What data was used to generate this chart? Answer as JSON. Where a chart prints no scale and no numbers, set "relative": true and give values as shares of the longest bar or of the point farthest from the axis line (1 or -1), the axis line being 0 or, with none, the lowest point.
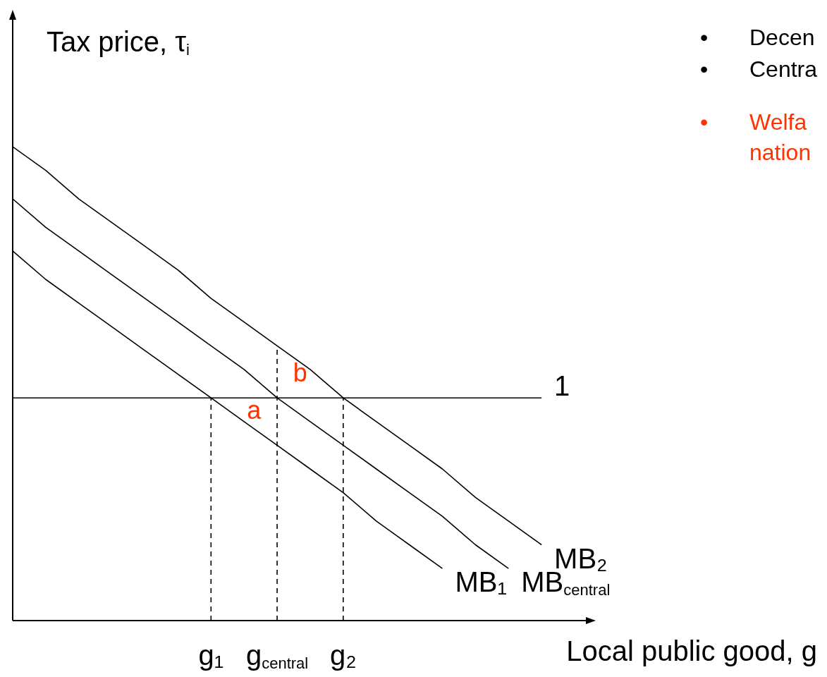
{
  "chart_data": {
    "type": "line",
    "relative": true,
    "ylabel": "Tax price, τ$_{i}$",
    "xlabel": "Local public good, g",
    "legend": false,
    "marker": "none",
    "categories": [
      null,
      null,
      null,
      null,
      null,
      null,
      "g₁",
      null,
      "g$_{central}$",
      null,
      "g₂",
      null,
      null,
      null,
      null,
      null,
      null,
      null
    ],
    "series": [
      {
        "name": "MB₂",
        "color": "#000000",
        "values": [
          1,
          0.95,
          0.89,
          0.84,
          0.79,
          0.74,
          0.68,
          0.63,
          0.58,
          0.53,
          0.47,
          0.42,
          0.37,
          0.32,
          0.26,
          0.21,
          0.16,
          null
        ]
      },
      {
        "name": "MB$_{central}$",
        "color": "#000000",
        "values": [
          0.89,
          0.83,
          0.78,
          0.73,
          0.68,
          0.63,
          0.58,
          0.53,
          0.47,
          0.42,
          0.37,
          0.32,
          0.27,
          0.22,
          0.16,
          0.11,
          null,
          null
        ]
      },
      {
        "name": "MB₁",
        "color": "#000000",
        "values": [
          0.78,
          0.72,
          0.67,
          0.62,
          0.57,
          0.52,
          0.47,
          0.42,
          0.37,
          0.32,
          0.27,
          0.21,
          0.16,
          0.11,
          null,
          null,
          null,
          null
        ]
      },
      {
        "name": "1",
        "color": "#000000",
        "values": [
          0.47,
          0.47,
          0.47,
          0.47,
          0.47,
          0.47,
          0.47,
          0.47,
          0.47,
          0.47,
          0.47,
          0.47,
          0.47,
          0.47,
          0.47,
          0.47,
          0.47,
          null
        ]
      },
      {
        "type": "line",
        "line_style": "dashed",
        "color": "#000000",
        "x": [
          "g₁",
          "g₁"
        ],
        "values": [
          0,
          0.47
        ]
      },
      {
        "type": "line",
        "line_style": "dashed",
        "color": "#000000",
        "x": [
          "g$_{central}$",
          "g$_{central}$"
        ],
        "values": [
          0,
          0.58
        ]
      },
      {
        "type": "line",
        "line_style": "dashed",
        "color": "#000000",
        "x": [
          "g₂",
          "g₂"
        ],
        "values": [
          0,
          0.47
        ]
      }
    ],
    "annotations": [
      "a",
      "b",
      "• Decen",
      "• Centra",
      "• Welfa nation"
    ]
  }
}
